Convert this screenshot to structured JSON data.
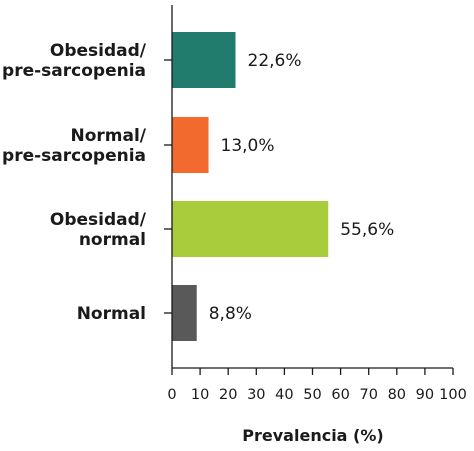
{
  "chart_data": {
    "type": "bar",
    "orientation": "horizontal",
    "categories": [
      [
        "Obesidad/",
        "pre-sarcopenia"
      ],
      [
        "Normal/",
        "pre-sarcopenia"
      ],
      [
        "Obesidad/",
        "normal"
      ],
      [
        "Normal"
      ]
    ],
    "values": [
      22.6,
      13.0,
      55.6,
      8.8
    ],
    "value_labels": [
      "22,6%",
      "13,0%",
      "55,6%",
      "8,8%"
    ],
    "colors": [
      "#227c6e",
      "#f26a2e",
      "#a8cc3c",
      "#595959"
    ],
    "xlabel": "Prevalencia (%)",
    "ylabel": "",
    "title": "",
    "xlim": [
      0,
      100
    ],
    "xticks": [
      0,
      10,
      20,
      30,
      40,
      50,
      60,
      70,
      80,
      90,
      100
    ],
    "grid": false,
    "legend": "none"
  }
}
